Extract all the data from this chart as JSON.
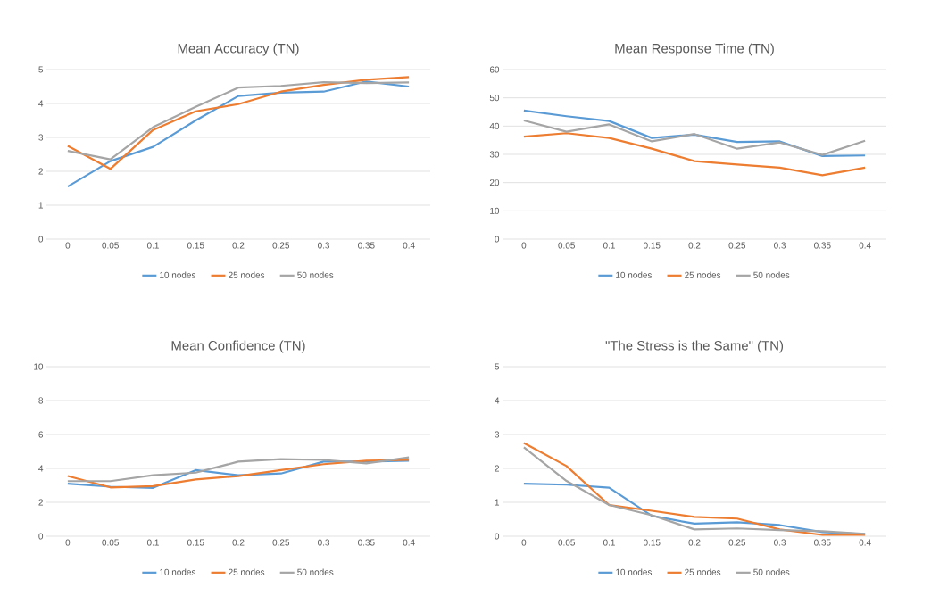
{
  "chart_data": [
    {
      "type": "line",
      "title": "Mean Accuracy (TN)",
      "categories": [
        "0",
        "0.05",
        "0.1",
        "0.15",
        "0.2",
        "0.25",
        "0.3",
        "0.35",
        "0.4"
      ],
      "ylim": [
        0,
        5
      ],
      "yticks": [
        0,
        1,
        2,
        3,
        4,
        5
      ],
      "grid": "y",
      "legend": "bottom",
      "marker": "none",
      "line_style": "solid",
      "series": [
        {
          "name": "10 nodes",
          "color": "#5b9bd5",
          "values": [
            1.55,
            2.3,
            2.72,
            3.5,
            4.22,
            4.32,
            4.35,
            4.65,
            4.5
          ]
        },
        {
          "name": "25 nodes",
          "color": "#ed7d31",
          "values": [
            2.75,
            2.07,
            3.22,
            3.77,
            3.98,
            4.35,
            4.55,
            4.7,
            4.78
          ]
        },
        {
          "name": "50 nodes",
          "color": "#a5a5a5",
          "values": [
            2.6,
            2.35,
            3.3,
            3.9,
            4.47,
            4.52,
            4.63,
            4.6,
            4.62
          ]
        }
      ]
    },
    {
      "type": "line",
      "title": "Mean Response Time (TN)",
      "categories": [
        "0",
        "0.05",
        "0.1",
        "0.15",
        "0.2",
        "0.25",
        "0.3",
        "0.35",
        "0.4"
      ],
      "ylim": [
        0,
        60
      ],
      "yticks": [
        0,
        10,
        20,
        30,
        40,
        50,
        60
      ],
      "grid": "y",
      "legend": "bottom",
      "marker": "none",
      "line_style": "solid",
      "series": [
        {
          "name": "10 nodes",
          "color": "#5b9bd5",
          "values": [
            45.5,
            43.5,
            41.8,
            35.8,
            37,
            34.4,
            34.6,
            29.4,
            29.6
          ]
        },
        {
          "name": "25 nodes",
          "color": "#ed7d31",
          "values": [
            36.3,
            37.5,
            35.8,
            32,
            27.6,
            26.4,
            25.3,
            22.6,
            25.3
          ]
        },
        {
          "name": "50 nodes",
          "color": "#a5a5a5",
          "values": [
            42,
            38,
            40.6,
            34.6,
            37.2,
            32,
            34.2,
            29.8,
            34.8
          ]
        }
      ]
    },
    {
      "type": "line",
      "title": "Mean Confidence (TN)",
      "categories": [
        "0",
        "0.05",
        "0.1",
        "0.15",
        "0.2",
        "0.25",
        "0.3",
        "0.35",
        "0.4"
      ],
      "ylim": [
        0,
        10
      ],
      "yticks": [
        0,
        2,
        4,
        6,
        8,
        10
      ],
      "grid": "y",
      "legend": "bottom",
      "marker": "none",
      "line_style": "solid",
      "series": [
        {
          "name": "10 nodes",
          "color": "#5b9bd5",
          "values": [
            3.1,
            2.92,
            2.85,
            3.9,
            3.6,
            3.7,
            4.4,
            4.4,
            4.45
          ]
        },
        {
          "name": "25 nodes",
          "color": "#ed7d31",
          "values": [
            3.55,
            2.88,
            2.95,
            3.35,
            3.55,
            3.9,
            4.25,
            4.45,
            4.5
          ]
        },
        {
          "name": "50 nodes",
          "color": "#a5a5a5",
          "values": [
            3.25,
            3.25,
            3.6,
            3.75,
            4.4,
            4.55,
            4.5,
            4.3,
            4.65
          ]
        }
      ]
    },
    {
      "type": "line",
      "title": "\"The Stress is the Same\" (TN)",
      "categories": [
        "0",
        "0.05",
        "0.1",
        "0.15",
        "0.2",
        "0.25",
        "0.3",
        "0.35",
        "0.4"
      ],
      "ylim": [
        0,
        5
      ],
      "yticks": [
        0,
        1,
        2,
        3,
        4,
        5
      ],
      "grid": "y",
      "legend": "bottom",
      "marker": "none",
      "line_style": "solid",
      "series": [
        {
          "name": "10 nodes",
          "color": "#5b9bd5",
          "values": [
            1.55,
            1.52,
            1.43,
            0.6,
            0.37,
            0.41,
            0.33,
            0.12,
            0.06
          ]
        },
        {
          "name": "25 nodes",
          "color": "#ed7d31",
          "values": [
            2.75,
            2.07,
            0.92,
            0.75,
            0.57,
            0.52,
            0.2,
            0.04,
            0.04
          ]
        },
        {
          "name": "50 nodes",
          "color": "#a5a5a5",
          "values": [
            2.62,
            1.63,
            0.92,
            0.62,
            0.2,
            0.23,
            0.18,
            0.15,
            0.07
          ]
        }
      ]
    }
  ]
}
